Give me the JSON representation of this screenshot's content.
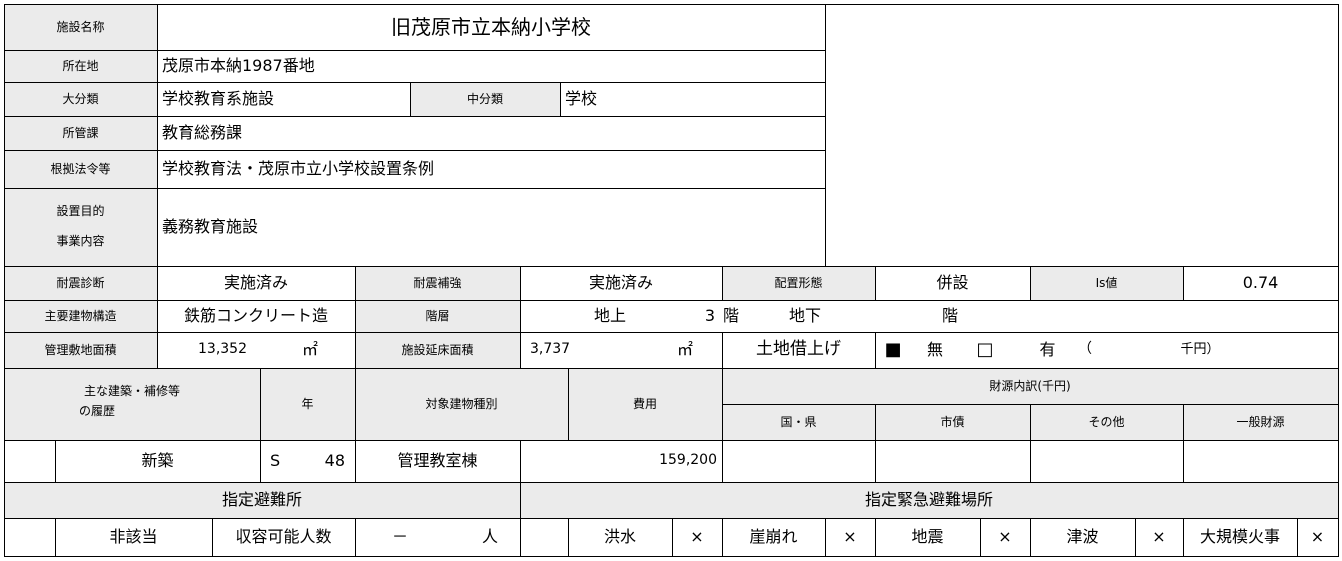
{
  "facility": {
    "name": {
      "label": "施設名称",
      "value": "旧茂原市立本納小学校"
    },
    "location": {
      "label": "所在地",
      "value": "茂原市本納1987番地"
    },
    "major_category": {
      "label": "大分類",
      "value": "学校教育系施設"
    },
    "middle_category": {
      "label": "中分類",
      "value": "学校"
    },
    "department": {
      "label": "所管課",
      "value": "教育総務課"
    },
    "legal_basis": {
      "label": "根拠法令等",
      "value": "学校教育法・茂原市立小学校設置条例"
    },
    "purpose": {
      "label": [
        "設置目的",
        "事業内容"
      ],
      "value": "義務教育施設"
    }
  },
  "seismic": {
    "diagnosis": {
      "label": "耐震診断",
      "value": "実施済み"
    },
    "reinforcement": {
      "label": "耐震補強",
      "value": "実施済み"
    },
    "layout": {
      "label": "配置形態",
      "value": "併設"
    },
    "is_value": {
      "label": "Is値",
      "value": "0.74"
    }
  },
  "structure": {
    "label": "主要建物構造",
    "value": "鉄筋コンクリート造",
    "floors_label": "階層",
    "above_label": "地上",
    "above": "3",
    "floor_unit": "階",
    "below_label": "地下"
  },
  "area": {
    "site_label": "管理敷地面積",
    "site": "13,352",
    "unit": "㎡",
    "floor_label": "施設延床面積",
    "floor": "3,737",
    "lease_label": "土地借上げ",
    "lease_options": [
      "■",
      "無",
      "□",
      "有"
    ],
    "lease_open": "（",
    "lease_unit": "千円）"
  },
  "history": {
    "headers": {
      "item": [
        "主な建築・補修等",
        "の履歴"
      ],
      "year": "年",
      "building": "対象建物種別",
      "cost": "費用",
      "funding": "財源内訳(千円)",
      "funding_sources": [
        "国・県",
        "市債",
        "その他",
        "一般財源"
      ]
    },
    "rows": [
      {
        "item": "新築",
        "era": "S",
        "year": "48",
        "building": "管理教室棟",
        "cost": "159,200"
      }
    ]
  },
  "evacuation": {
    "shelter_label": "指定避難所",
    "shelter": "非該当",
    "capacity_label": "収容可能人数",
    "capacity": "－",
    "capacity_unit": "人",
    "emergency_label": "指定緊急避難場所",
    "hazards": [
      {
        "name": "洪水",
        "value": "×"
      },
      {
        "name": "崖崩れ",
        "value": "×"
      },
      {
        "name": "地震",
        "value": "×"
      },
      {
        "name": "津波",
        "value": "×"
      },
      {
        "name": "大規模火事",
        "value": "×"
      }
    ]
  }
}
